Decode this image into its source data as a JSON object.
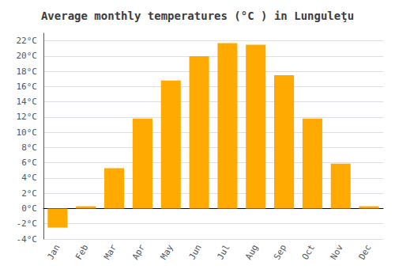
{
  "chart_data": {
    "type": "bar",
    "title": "Average monthly temperatures (°C ) in Lunguleţu",
    "categories": [
      "Jan",
      "Feb",
      "Mar",
      "Apr",
      "May",
      "Jun",
      "Jul",
      "Aug",
      "Sep",
      "Oct",
      "Nov",
      "Dec"
    ],
    "values": [
      -2.5,
      0.3,
      5.3,
      11.8,
      16.8,
      20.0,
      21.7,
      21.5,
      17.5,
      11.8,
      5.9,
      0.3
    ],
    "color": "#FFAA00",
    "ylim": [
      -4,
      23
    ],
    "yticks": [
      {
        "value": -4,
        "label": "-4°C"
      },
      {
        "value": -2,
        "label": "-2°C"
      },
      {
        "value": 0,
        "label": "0°C"
      },
      {
        "value": 2,
        "label": "2°C"
      },
      {
        "value": 4,
        "label": "4°C"
      },
      {
        "value": 6,
        "label": "6°C"
      },
      {
        "value": 8,
        "label": "8°C"
      },
      {
        "value": 10,
        "label": "10°C"
      },
      {
        "value": 12,
        "label": "12°C"
      },
      {
        "value": 14,
        "label": "14°C"
      },
      {
        "value": 16,
        "label": "16°C"
      },
      {
        "value": 18,
        "label": "18°C"
      },
      {
        "value": 20,
        "label": "20°C"
      },
      {
        "value": 22,
        "label": "22°C"
      }
    ],
    "grid": true
  }
}
